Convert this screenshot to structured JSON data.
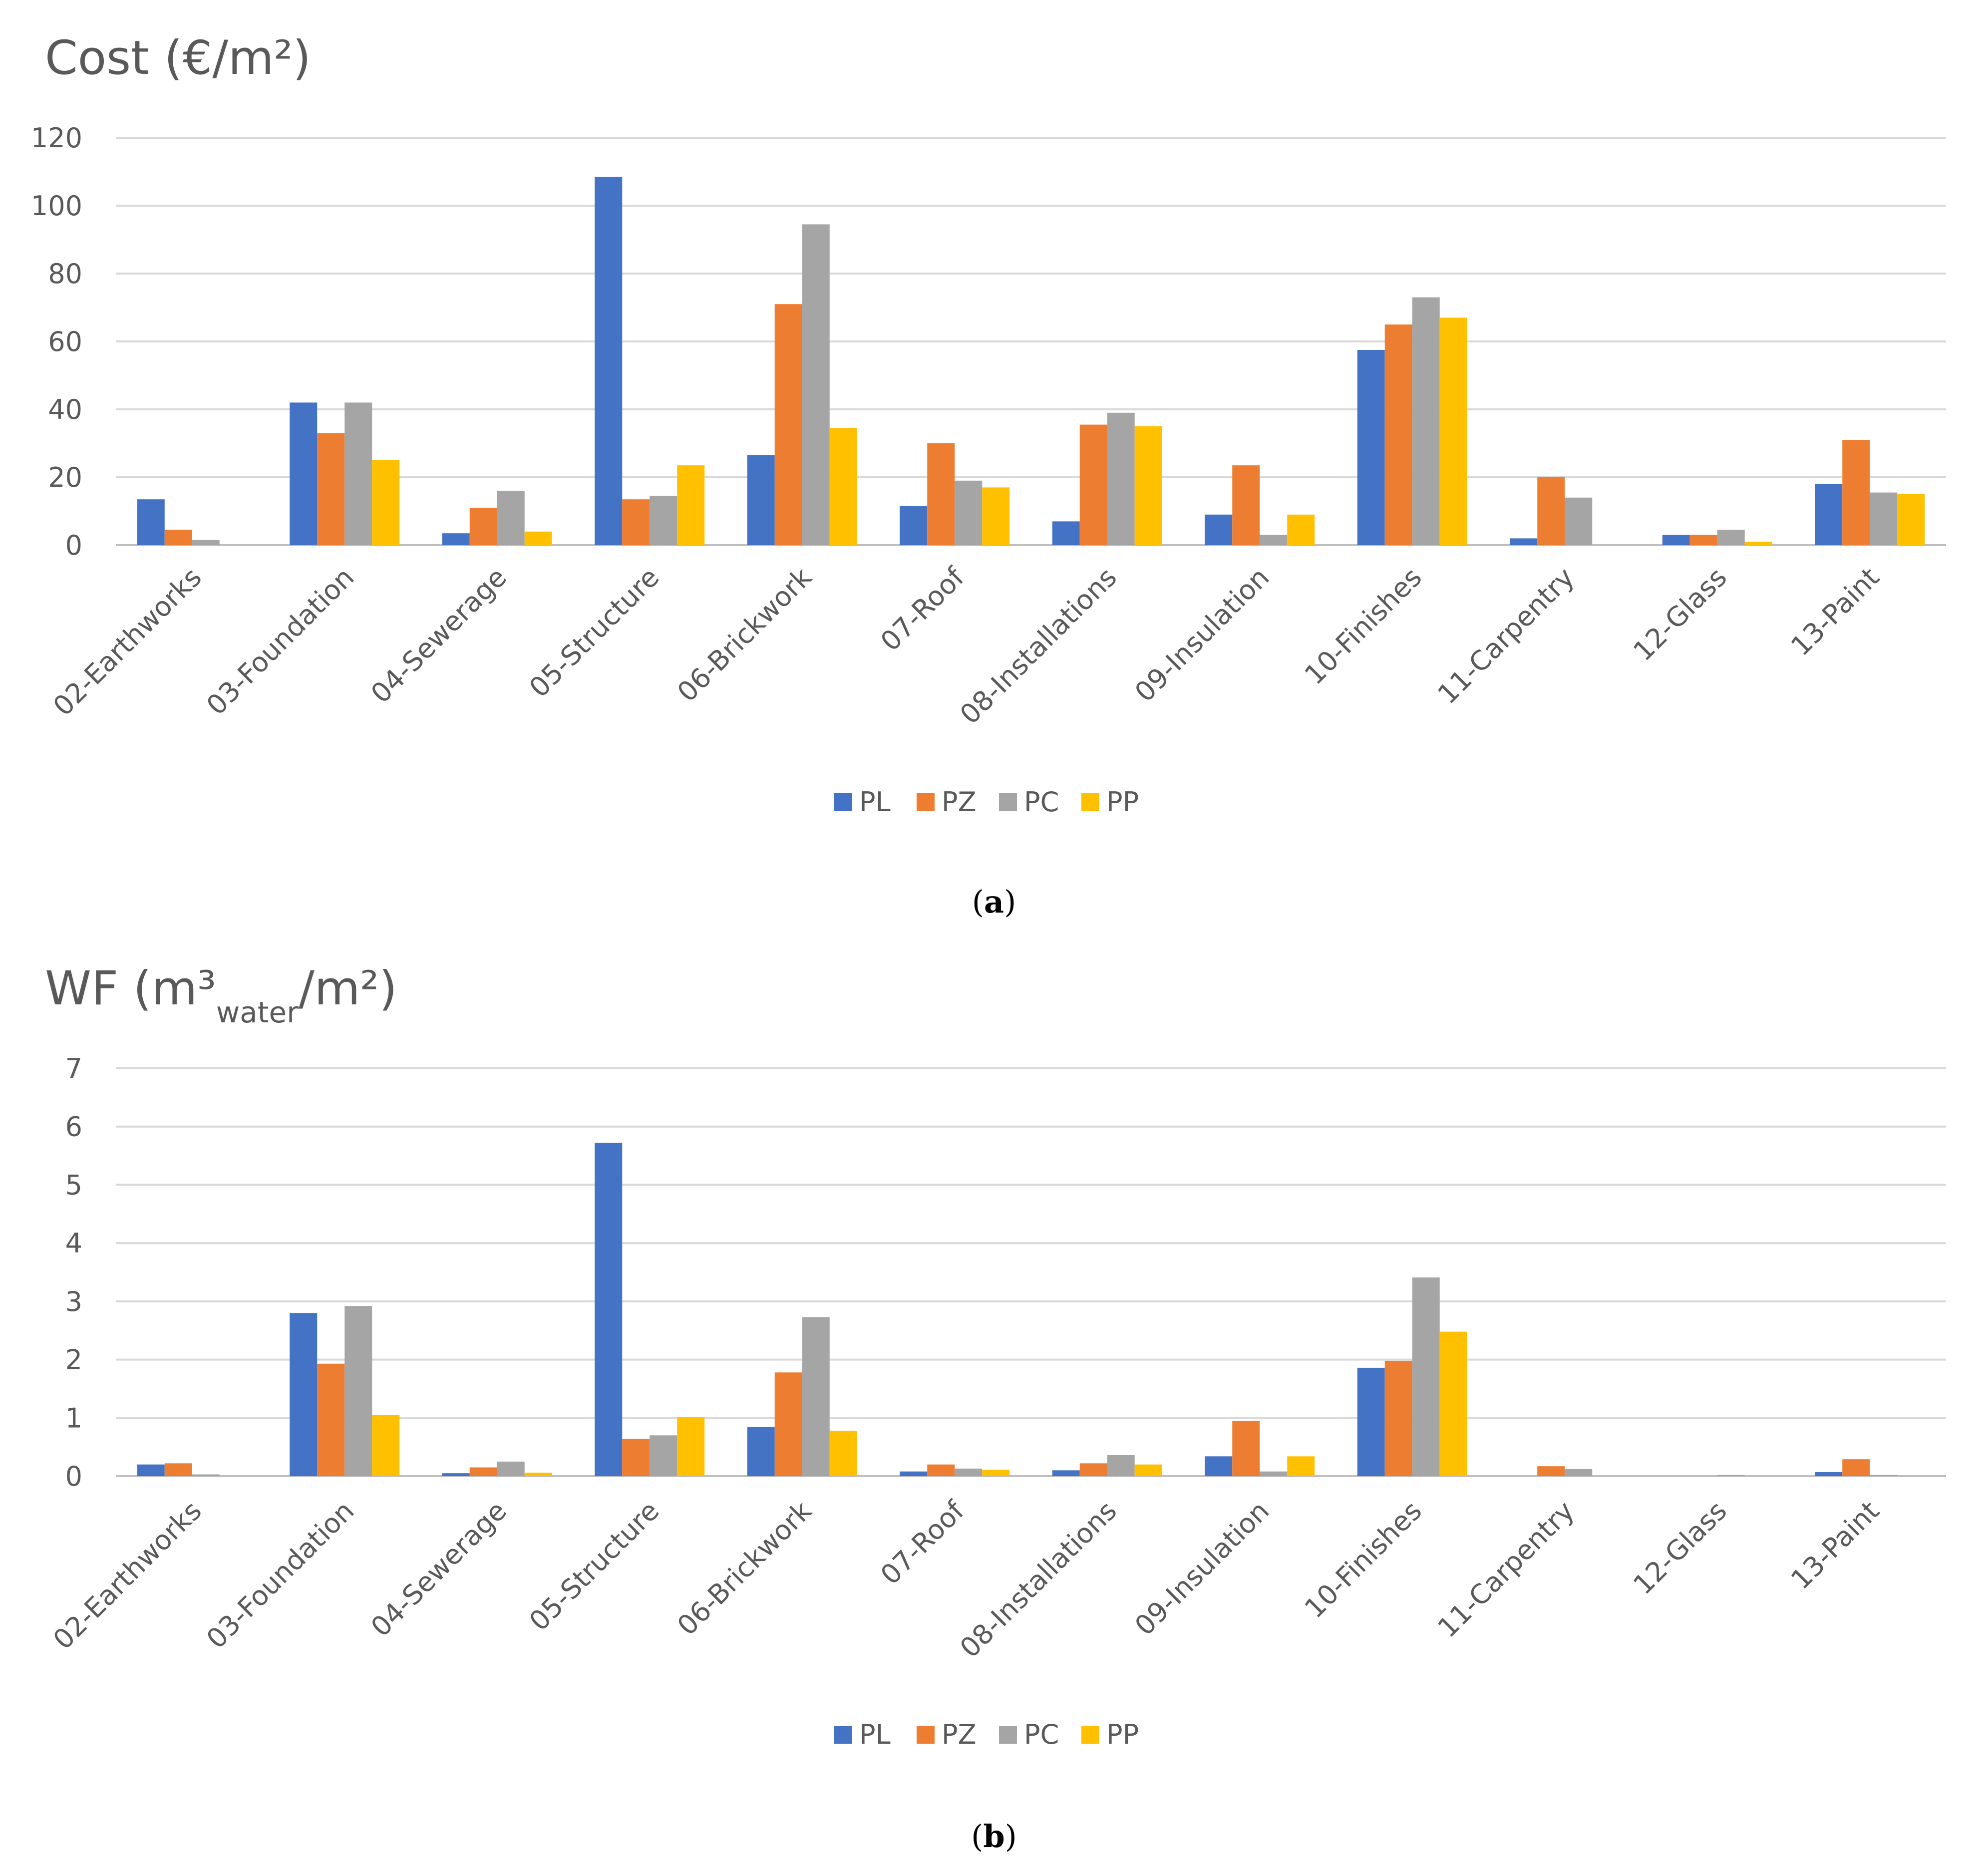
{
  "chart_data": [
    {
      "type": "bar",
      "title": "Cost (€/m²)",
      "caption": {
        "open": "(",
        "letter": "a",
        "close": ")"
      },
      "categories": [
        "02-Earthworks",
        "03-Foundation",
        "04-Sewerage",
        "05-Structure",
        "06-Brickwork",
        "07-Roof",
        "08-Installations",
        "09-Insulation",
        "10-Finishes",
        "11-Carpentry",
        "12-Glass",
        "13-Paint"
      ],
      "ylim": [
        0,
        120
      ],
      "yticks": [
        "0",
        "20",
        "40",
        "60",
        "80",
        "100",
        "120"
      ],
      "grid": true,
      "legend_position": "bottom-center",
      "series": [
        {
          "name": "PL",
          "color": "#4472C4",
          "values": [
            13.5,
            42,
            3.5,
            108.5,
            26.5,
            11.5,
            7,
            9,
            57.5,
            2,
            3,
            18
          ]
        },
        {
          "name": "PZ",
          "color": "#ED7D31",
          "values": [
            4.5,
            33,
            11,
            13.5,
            71,
            30,
            35.5,
            23.5,
            65,
            20,
            3,
            31
          ]
        },
        {
          "name": "PC",
          "color": "#A5A5A5",
          "values": [
            1.5,
            42,
            16,
            14.5,
            94.5,
            19,
            39,
            3,
            73,
            14,
            4.5,
            15.5
          ]
        },
        {
          "name": "PP",
          "color": "#FFC000",
          "values": [
            0,
            25,
            4,
            23.5,
            34.5,
            17,
            35,
            9,
            67,
            0,
            1,
            15
          ]
        }
      ]
    },
    {
      "type": "bar",
      "title": {
        "main": "WF (m³",
        "sub": "water",
        "tail": "/m²)"
      },
      "caption": {
        "open": "(",
        "letter": "b",
        "close": ")"
      },
      "categories": [
        "02-Earthworks",
        "03-Foundation",
        "04-Sewerage",
        "05-Structure",
        "06-Brickwork",
        "07-Roof",
        "08-Installations",
        "09-Insulation",
        "10-Finishes",
        "11-Carpentry",
        "12-Glass",
        "13-Paint"
      ],
      "ylim": [
        0,
        7
      ],
      "yticks": [
        "0",
        "1",
        "2",
        "3",
        "4",
        "5",
        "6",
        "7"
      ],
      "grid": true,
      "legend_position": "bottom-center",
      "series": [
        {
          "name": "PL",
          "color": "#4472C4",
          "values": [
            0.2,
            2.8,
            0.05,
            5.72,
            0.84,
            0.08,
            0.1,
            0.34,
            1.86,
            0,
            0,
            0.07
          ]
        },
        {
          "name": "PZ",
          "color": "#ED7D31",
          "values": [
            0.22,
            1.93,
            0.15,
            0.64,
            1.78,
            0.2,
            0.22,
            0.95,
            1.98,
            0.17,
            0,
            0.29
          ]
        },
        {
          "name": "PC",
          "color": "#A5A5A5",
          "values": [
            0.03,
            2.92,
            0.25,
            0.7,
            2.73,
            0.13,
            0.36,
            0.08,
            3.41,
            0.12,
            0.02,
            0.02
          ]
        },
        {
          "name": "PP",
          "color": "#FFC000",
          "values": [
            0,
            1.05,
            0.06,
            1.01,
            0.78,
            0.11,
            0.2,
            0.34,
            2.48,
            0,
            0,
            0
          ]
        }
      ]
    }
  ]
}
